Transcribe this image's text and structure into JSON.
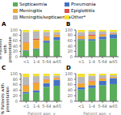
{
  "chart_data": [
    {
      "type": "bar",
      "stacked": true,
      "title": "A",
      "ylabel": "% Patients with\npresentation",
      "categories": [
        "<1",
        "1-4",
        "5-64",
        "≥65"
      ],
      "series": [
        {
          "name": "Septicaemia",
          "color": "#5aad5a",
          "values": [
            22,
            28,
            52,
            62
          ]
        },
        {
          "name": "Pneumonia",
          "color": "#4472c4",
          "values": [
            2,
            3,
            8,
            12
          ]
        },
        {
          "name": "Meningitis",
          "color": "#f0a830",
          "values": [
            28,
            32,
            14,
            7
          ]
        },
        {
          "name": "Epiglottitis",
          "color": "#d9534f",
          "values": [
            2,
            5,
            3,
            1
          ]
        },
        {
          "name": "Meningitis/septicaemia",
          "color": "#b8b8b8",
          "values": [
            38,
            26,
            16,
            10
          ]
        },
        {
          "name": "Other*",
          "color": "#f5e030",
          "values": [
            8,
            6,
            7,
            8
          ]
        }
      ],
      "ylim": [
        0,
        100
      ],
      "yticks": [
        0,
        20,
        40,
        60,
        80,
        100
      ],
      "grid": false
    },
    {
      "type": "bar",
      "stacked": true,
      "title": "B",
      "categories": [
        "<1",
        "1-4",
        "5-64",
        "≥65"
      ],
      "series": [
        {
          "name": "Septicaemia",
          "color": "#5aad5a",
          "values": [
            62,
            60,
            65,
            68
          ]
        },
        {
          "name": "Pneumonia",
          "color": "#4472c4",
          "values": [
            4,
            6,
            10,
            16
          ]
        },
        {
          "name": "Meningitis",
          "color": "#f0a830",
          "values": [
            10,
            12,
            7,
            3
          ]
        },
        {
          "name": "Epiglottitis",
          "color": "#d9534f",
          "values": [
            2,
            4,
            2,
            1
          ]
        },
        {
          "name": "Meningitis/septicaemia",
          "color": "#b8b8b8",
          "values": [
            14,
            12,
            10,
            5
          ]
        },
        {
          "name": "Other*",
          "color": "#f5e030",
          "values": [
            8,
            6,
            6,
            7
          ]
        }
      ],
      "ylim": [
        0,
        100
      ],
      "yticks": [
        0,
        20,
        40,
        60,
        80,
        100
      ],
      "grid": false
    },
    {
      "type": "bar",
      "stacked": true,
      "title": "C",
      "xlabel": "Patient age, y",
      "ylabel": "% Patients with\npresentation",
      "categories": [
        "<1",
        "1-4",
        "5-64",
        "≥65"
      ],
      "series": [
        {
          "name": "Septicaemia",
          "color": "#5aad5a",
          "values": [
            28,
            32,
            52,
            56
          ]
        },
        {
          "name": "Pneumonia",
          "color": "#4472c4",
          "values": [
            6,
            8,
            14,
            22
          ]
        },
        {
          "name": "Meningitis",
          "color": "#f0a830",
          "values": [
            22,
            26,
            12,
            6
          ]
        },
        {
          "name": "Epiglottitis",
          "color": "#d9534f",
          "values": [
            2,
            3,
            2,
            1
          ]
        },
        {
          "name": "Meningitis/septicaemia",
          "color": "#b8b8b8",
          "values": [
            30,
            22,
            12,
            8
          ]
        },
        {
          "name": "Other*",
          "color": "#f5e030",
          "values": [
            12,
            9,
            8,
            7
          ]
        }
      ],
      "ylim": [
        0,
        100
      ],
      "yticks": [
        0,
        20,
        40,
        60,
        80,
        100
      ],
      "grid": false
    },
    {
      "type": "bar",
      "stacked": true,
      "title": "D",
      "xlabel": "Patient age, y",
      "categories": [
        "<1",
        "1-4",
        "5-64",
        "≥65"
      ],
      "series": [
        {
          "name": "Septicaemia",
          "color": "#5aad5a",
          "values": [
            42,
            48,
            58,
            62
          ]
        },
        {
          "name": "Pneumonia",
          "color": "#4472c4",
          "values": [
            8,
            10,
            16,
            22
          ]
        },
        {
          "name": "Meningitis",
          "color": "#f0a830",
          "values": [
            14,
            14,
            8,
            4
          ]
        },
        {
          "name": "Epiglottitis",
          "color": "#d9534f",
          "values": [
            2,
            3,
            2,
            1
          ]
        },
        {
          "name": "Meningitis/septicaemia",
          "color": "#b8b8b8",
          "values": [
            22,
            18,
            10,
            5
          ]
        },
        {
          "name": "Other*",
          "color": "#f5e030",
          "values": [
            12,
            7,
            6,
            6
          ]
        }
      ],
      "ylim": [
        0,
        100
      ],
      "yticks": [
        0,
        20,
        40,
        60,
        80,
        100
      ],
      "grid": false
    }
  ]
}
